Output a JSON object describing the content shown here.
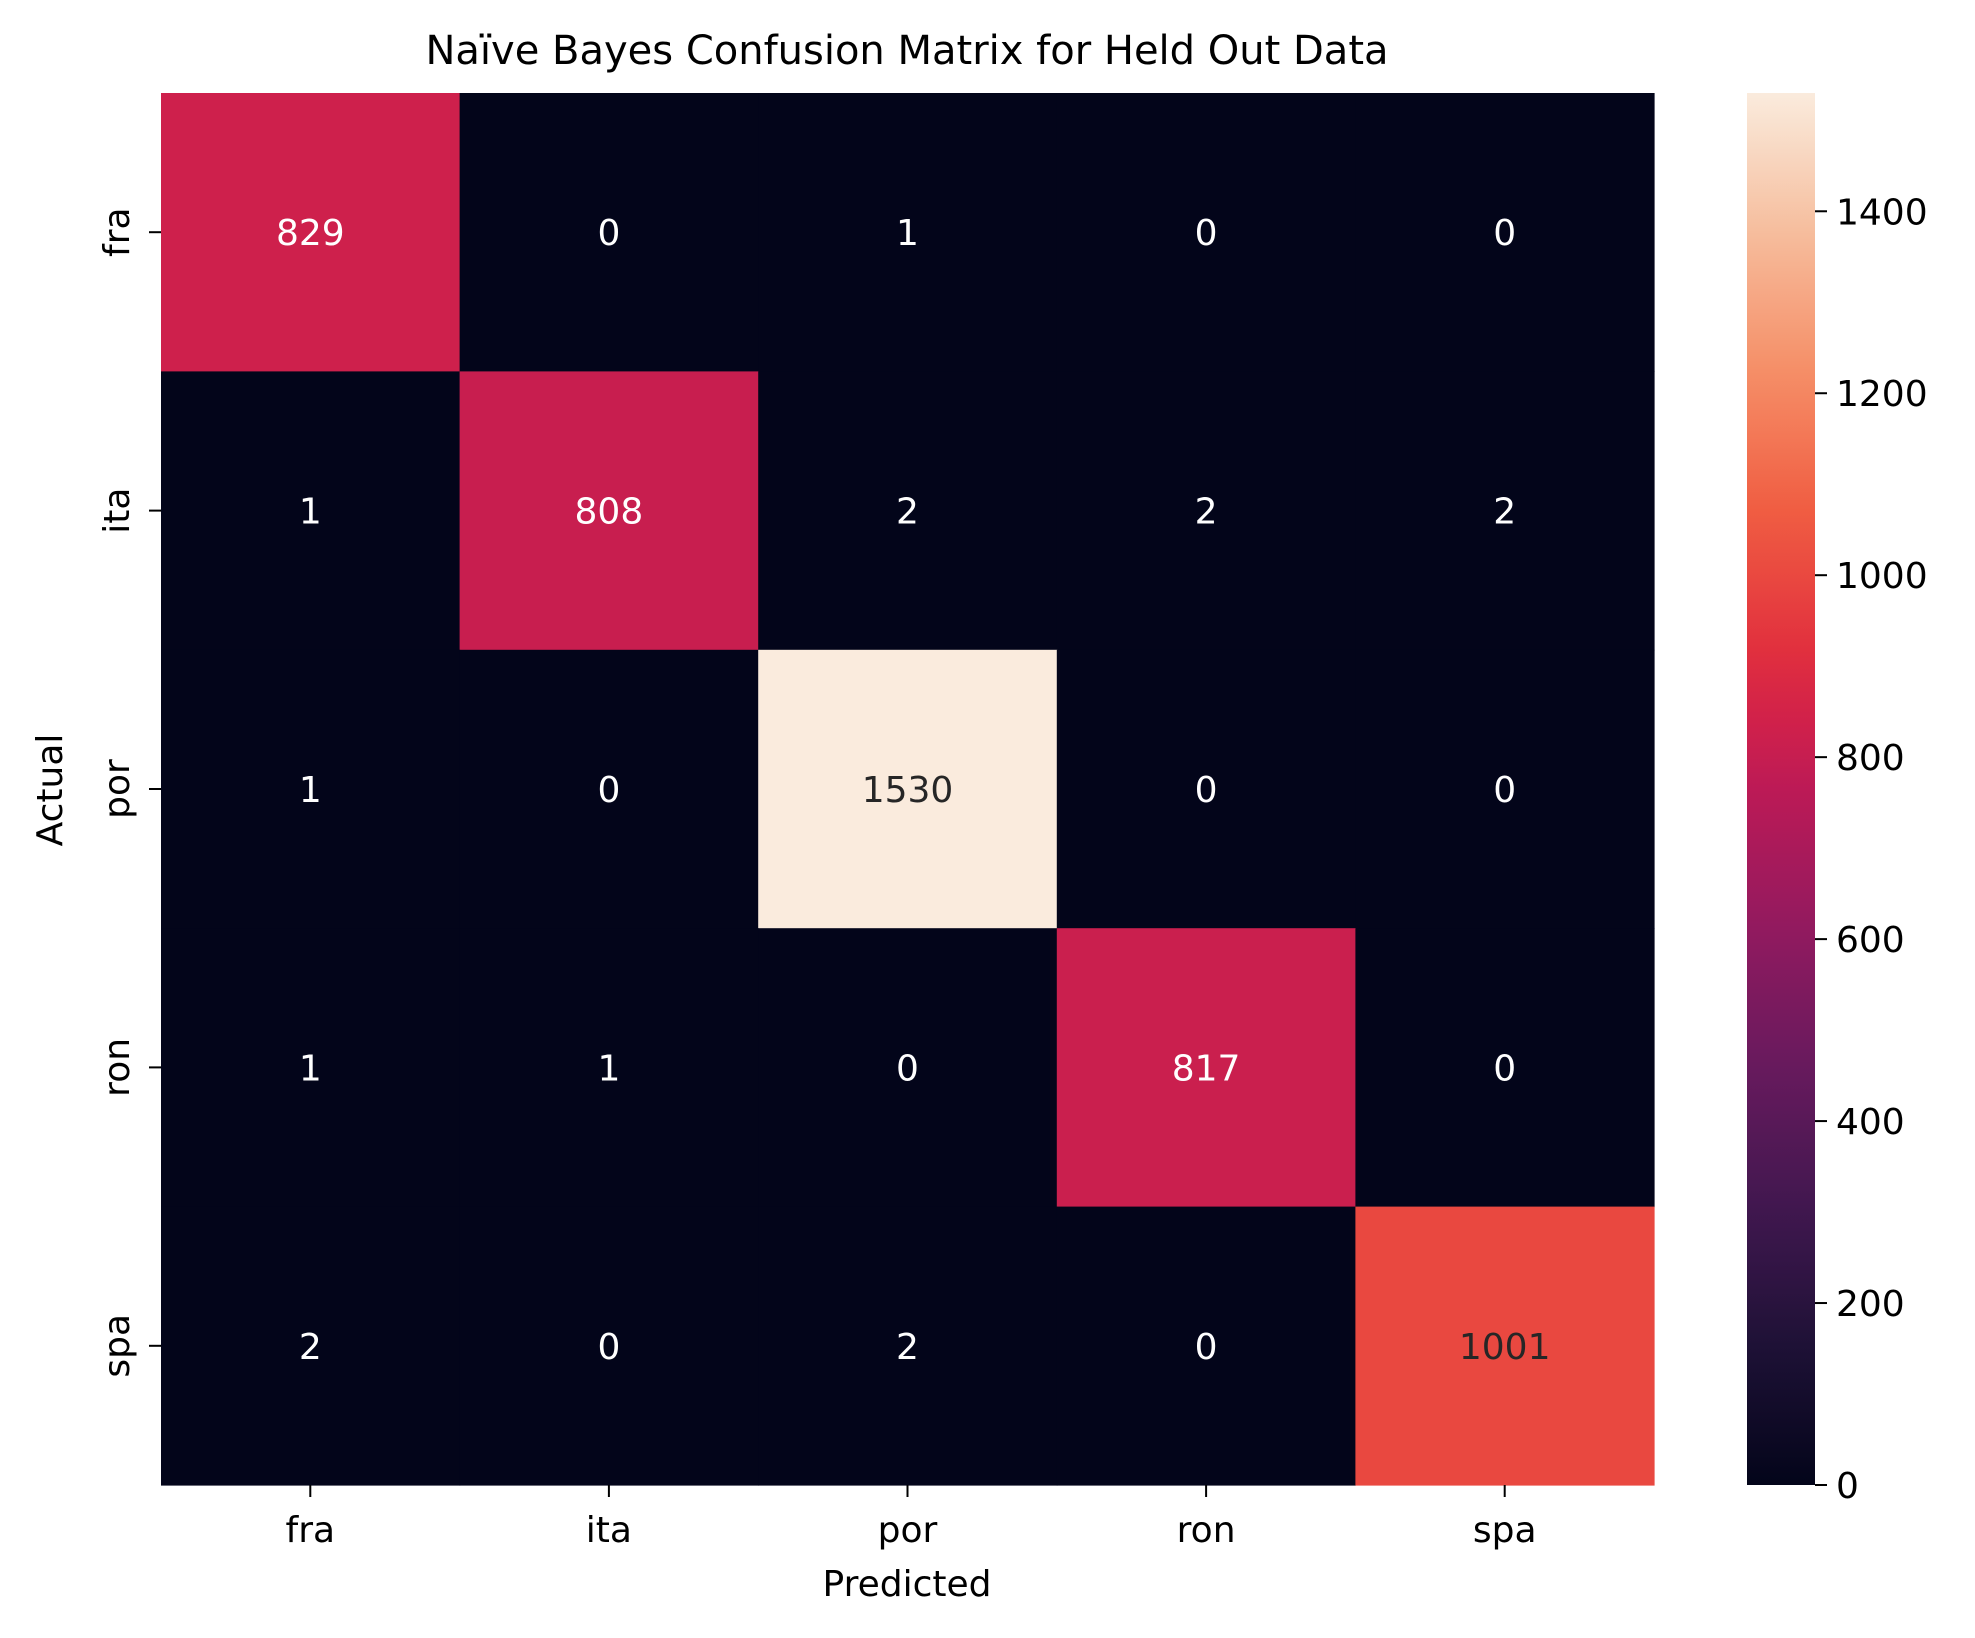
{
  "chart_data": {
    "type": "heatmap",
    "title": "Naïve Bayes Confusion Matrix for Held Out Data",
    "xlabel": "Predicted",
    "ylabel": "Actual",
    "x_categories": [
      "fra",
      "ita",
      "por",
      "ron",
      "spa"
    ],
    "y_categories": [
      "fra",
      "ita",
      "por",
      "ron",
      "spa"
    ],
    "matrix": [
      [
        829,
        0,
        1,
        0,
        0
      ],
      [
        1,
        808,
        2,
        2,
        2
      ],
      [
        1,
        0,
        1530,
        0,
        0
      ],
      [
        1,
        1,
        0,
        817,
        0
      ],
      [
        2,
        0,
        2,
        0,
        1001
      ]
    ],
    "colorbar": {
      "min": 0,
      "max": 1530,
      "ticks": [
        0,
        200,
        400,
        600,
        800,
        1000,
        1200,
        1400
      ]
    },
    "colormap": "rocket",
    "grid": false
  }
}
